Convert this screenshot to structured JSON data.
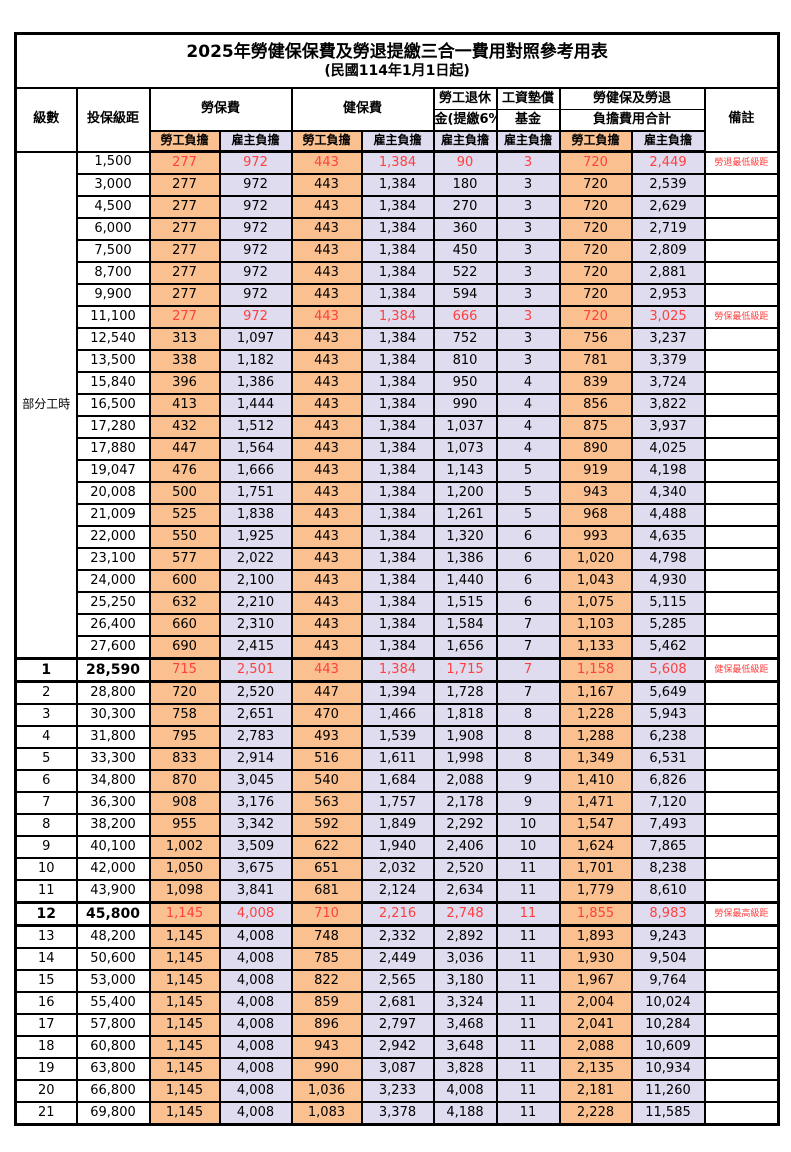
{
  "title": "2025年勞健保保費及勞退提繳三合一費用對照參考用表",
  "subtitle": "(民國114年1月1日起)",
  "header": {
    "level": "級數",
    "bracket": "投保級距",
    "labor_insurance": "勞保費",
    "health_insurance": "健保費",
    "pension_line1": "勞工退休",
    "pension_line2": "金(提繳6%)",
    "wage_fund_line1": "工資墊償",
    "wage_fund_line2": "基金",
    "total_line1": "勞健保及勞退",
    "total_line2": "負擔費用合計",
    "remark": "備註",
    "employee": "勞工負擔",
    "employer": "雇主負擔"
  },
  "part_time_label": "部分工時",
  "colors": {
    "employee_bg": "#FAC08F",
    "employer_bg": "#DEDCEE",
    "highlight_text": "#FF4040",
    "border_color": "#000000"
  },
  "part_time_rows": [
    {
      "bracket": "1,500",
      "v": [
        "277",
        "972",
        "443",
        "1,384",
        "90",
        "3",
        "720",
        "2,449"
      ],
      "remark": "勞退最低級距",
      "hl": true,
      "em": false
    },
    {
      "bracket": "3,000",
      "v": [
        "277",
        "972",
        "443",
        "1,384",
        "180",
        "3",
        "720",
        "2,539"
      ],
      "remark": "",
      "hl": false,
      "em": false
    },
    {
      "bracket": "4,500",
      "v": [
        "277",
        "972",
        "443",
        "1,384",
        "270",
        "3",
        "720",
        "2,629"
      ],
      "remark": "",
      "hl": false,
      "em": false
    },
    {
      "bracket": "6,000",
      "v": [
        "277",
        "972",
        "443",
        "1,384",
        "360",
        "3",
        "720",
        "2,719"
      ],
      "remark": "",
      "hl": false,
      "em": false
    },
    {
      "bracket": "7,500",
      "v": [
        "277",
        "972",
        "443",
        "1,384",
        "450",
        "3",
        "720",
        "2,809"
      ],
      "remark": "",
      "hl": false,
      "em": false
    },
    {
      "bracket": "8,700",
      "v": [
        "277",
        "972",
        "443",
        "1,384",
        "522",
        "3",
        "720",
        "2,881"
      ],
      "remark": "",
      "hl": false,
      "em": false
    },
    {
      "bracket": "9,900",
      "v": [
        "277",
        "972",
        "443",
        "1,384",
        "594",
        "3",
        "720",
        "2,953"
      ],
      "remark": "",
      "hl": false,
      "em": false
    },
    {
      "bracket": "11,100",
      "v": [
        "277",
        "972",
        "443",
        "1,384",
        "666",
        "3",
        "720",
        "3,025"
      ],
      "remark": "勞保最低級距",
      "hl": true,
      "em": false
    },
    {
      "bracket": "12,540",
      "v": [
        "313",
        "1,097",
        "443",
        "1,384",
        "752",
        "3",
        "756",
        "3,237"
      ],
      "remark": "",
      "hl": false,
      "em": false
    },
    {
      "bracket": "13,500",
      "v": [
        "338",
        "1,182",
        "443",
        "1,384",
        "810",
        "3",
        "781",
        "3,379"
      ],
      "remark": "",
      "hl": false,
      "em": false
    },
    {
      "bracket": "15,840",
      "v": [
        "396",
        "1,386",
        "443",
        "1,384",
        "950",
        "4",
        "839",
        "3,724"
      ],
      "remark": "",
      "hl": false,
      "em": false
    },
    {
      "bracket": "16,500",
      "v": [
        "413",
        "1,444",
        "443",
        "1,384",
        "990",
        "4",
        "856",
        "3,822"
      ],
      "remark": "",
      "hl": false,
      "em": false
    },
    {
      "bracket": "17,280",
      "v": [
        "432",
        "1,512",
        "443",
        "1,384",
        "1,037",
        "4",
        "875",
        "3,937"
      ],
      "remark": "",
      "hl": false,
      "em": false
    },
    {
      "bracket": "17,880",
      "v": [
        "447",
        "1,564",
        "443",
        "1,384",
        "1,073",
        "4",
        "890",
        "4,025"
      ],
      "remark": "",
      "hl": false,
      "em": false
    },
    {
      "bracket": "19,047",
      "v": [
        "476",
        "1,666",
        "443",
        "1,384",
        "1,143",
        "5",
        "919",
        "4,198"
      ],
      "remark": "",
      "hl": false,
      "em": false
    },
    {
      "bracket": "20,008",
      "v": [
        "500",
        "1,751",
        "443",
        "1,384",
        "1,200",
        "5",
        "943",
        "4,340"
      ],
      "remark": "",
      "hl": false,
      "em": false
    },
    {
      "bracket": "21,009",
      "v": [
        "525",
        "1,838",
        "443",
        "1,384",
        "1,261",
        "5",
        "968",
        "4,488"
      ],
      "remark": "",
      "hl": false,
      "em": false
    },
    {
      "bracket": "22,000",
      "v": [
        "550",
        "1,925",
        "443",
        "1,384",
        "1,320",
        "6",
        "993",
        "4,635"
      ],
      "remark": "",
      "hl": false,
      "em": false
    },
    {
      "bracket": "23,100",
      "v": [
        "577",
        "2,022",
        "443",
        "1,384",
        "1,386",
        "6",
        "1,020",
        "4,798"
      ],
      "remark": "",
      "hl": false,
      "em": false
    },
    {
      "bracket": "24,000",
      "v": [
        "600",
        "2,100",
        "443",
        "1,384",
        "1,440",
        "6",
        "1,043",
        "4,930"
      ],
      "remark": "",
      "hl": false,
      "em": false
    },
    {
      "bracket": "25,250",
      "v": [
        "632",
        "2,210",
        "443",
        "1,384",
        "1,515",
        "6",
        "1,075",
        "5,115"
      ],
      "remark": "",
      "hl": false,
      "em": false
    },
    {
      "bracket": "26,400",
      "v": [
        "660",
        "2,310",
        "443",
        "1,384",
        "1,584",
        "7",
        "1,103",
        "5,285"
      ],
      "remark": "",
      "hl": false,
      "em": false
    },
    {
      "bracket": "27,600",
      "v": [
        "690",
        "2,415",
        "443",
        "1,384",
        "1,656",
        "7",
        "1,133",
        "5,462"
      ],
      "remark": "",
      "hl": false,
      "em": false
    }
  ],
  "numbered_rows": [
    {
      "level": "1",
      "bracket": "28,590",
      "v": [
        "715",
        "2,501",
        "443",
        "1,384",
        "1,715",
        "7",
        "1,158",
        "5,608"
      ],
      "remark": "健保最低級距",
      "hl": true,
      "em": true
    },
    {
      "level": "2",
      "bracket": "28,800",
      "v": [
        "720",
        "2,520",
        "447",
        "1,394",
        "1,728",
        "7",
        "1,167",
        "5,649"
      ],
      "remark": "",
      "hl": false,
      "em": false
    },
    {
      "level": "3",
      "bracket": "30,300",
      "v": [
        "758",
        "2,651",
        "470",
        "1,466",
        "1,818",
        "8",
        "1,228",
        "5,943"
      ],
      "remark": "",
      "hl": false,
      "em": false
    },
    {
      "level": "4",
      "bracket": "31,800",
      "v": [
        "795",
        "2,783",
        "493",
        "1,539",
        "1,908",
        "8",
        "1,288",
        "6,238"
      ],
      "remark": "",
      "hl": false,
      "em": false
    },
    {
      "level": "5",
      "bracket": "33,300",
      "v": [
        "833",
        "2,914",
        "516",
        "1,611",
        "1,998",
        "8",
        "1,349",
        "6,531"
      ],
      "remark": "",
      "hl": false,
      "em": false
    },
    {
      "level": "6",
      "bracket": "34,800",
      "v": [
        "870",
        "3,045",
        "540",
        "1,684",
        "2,088",
        "9",
        "1,410",
        "6,826"
      ],
      "remark": "",
      "hl": false,
      "em": false
    },
    {
      "level": "7",
      "bracket": "36,300",
      "v": [
        "908",
        "3,176",
        "563",
        "1,757",
        "2,178",
        "9",
        "1,471",
        "7,120"
      ],
      "remark": "",
      "hl": false,
      "em": false
    },
    {
      "level": "8",
      "bracket": "38,200",
      "v": [
        "955",
        "3,342",
        "592",
        "1,849",
        "2,292",
        "10",
        "1,547",
        "7,493"
      ],
      "remark": "",
      "hl": false,
      "em": false
    },
    {
      "level": "9",
      "bracket": "40,100",
      "v": [
        "1,002",
        "3,509",
        "622",
        "1,940",
        "2,406",
        "10",
        "1,624",
        "7,865"
      ],
      "remark": "",
      "hl": false,
      "em": false
    },
    {
      "level": "10",
      "bracket": "42,000",
      "v": [
        "1,050",
        "3,675",
        "651",
        "2,032",
        "2,520",
        "11",
        "1,701",
        "8,238"
      ],
      "remark": "",
      "hl": false,
      "em": false
    },
    {
      "level": "11",
      "bracket": "43,900",
      "v": [
        "1,098",
        "3,841",
        "681",
        "2,124",
        "2,634",
        "11",
        "1,779",
        "8,610"
      ],
      "remark": "",
      "hl": false,
      "em": false
    },
    {
      "level": "12",
      "bracket": "45,800",
      "v": [
        "1,145",
        "4,008",
        "710",
        "2,216",
        "2,748",
        "11",
        "1,855",
        "8,983"
      ],
      "remark": "勞保最高級距",
      "hl": true,
      "em": true
    },
    {
      "level": "13",
      "bracket": "48,200",
      "v": [
        "1,145",
        "4,008",
        "748",
        "2,332",
        "2,892",
        "11",
        "1,893",
        "9,243"
      ],
      "remark": "",
      "hl": false,
      "em": false
    },
    {
      "level": "14",
      "bracket": "50,600",
      "v": [
        "1,145",
        "4,008",
        "785",
        "2,449",
        "3,036",
        "11",
        "1,930",
        "9,504"
      ],
      "remark": "",
      "hl": false,
      "em": false
    },
    {
      "level": "15",
      "bracket": "53,000",
      "v": [
        "1,145",
        "4,008",
        "822",
        "2,565",
        "3,180",
        "11",
        "1,967",
        "9,764"
      ],
      "remark": "",
      "hl": false,
      "em": false
    },
    {
      "level": "16",
      "bracket": "55,400",
      "v": [
        "1,145",
        "4,008",
        "859",
        "2,681",
        "3,324",
        "11",
        "2,004",
        "10,024"
      ],
      "remark": "",
      "hl": false,
      "em": false
    },
    {
      "level": "17",
      "bracket": "57,800",
      "v": [
        "1,145",
        "4,008",
        "896",
        "2,797",
        "3,468",
        "11",
        "2,041",
        "10,284"
      ],
      "remark": "",
      "hl": false,
      "em": false
    },
    {
      "level": "18",
      "bracket": "60,800",
      "v": [
        "1,145",
        "4,008",
        "943",
        "2,942",
        "3,648",
        "11",
        "2,088",
        "10,609"
      ],
      "remark": "",
      "hl": false,
      "em": false
    },
    {
      "level": "19",
      "bracket": "63,800",
      "v": [
        "1,145",
        "4,008",
        "990",
        "3,087",
        "3,828",
        "11",
        "2,135",
        "10,934"
      ],
      "remark": "",
      "hl": false,
      "em": false
    },
    {
      "level": "20",
      "bracket": "66,800",
      "v": [
        "1,145",
        "4,008",
        "1,036",
        "3,233",
        "4,008",
        "11",
        "2,181",
        "11,260"
      ],
      "remark": "",
      "hl": false,
      "em": false
    },
    {
      "level": "21",
      "bracket": "69,800",
      "v": [
        "1,145",
        "4,008",
        "1,083",
        "3,378",
        "4,188",
        "11",
        "2,228",
        "11,585"
      ],
      "remark": "",
      "hl": false,
      "em": false
    }
  ]
}
